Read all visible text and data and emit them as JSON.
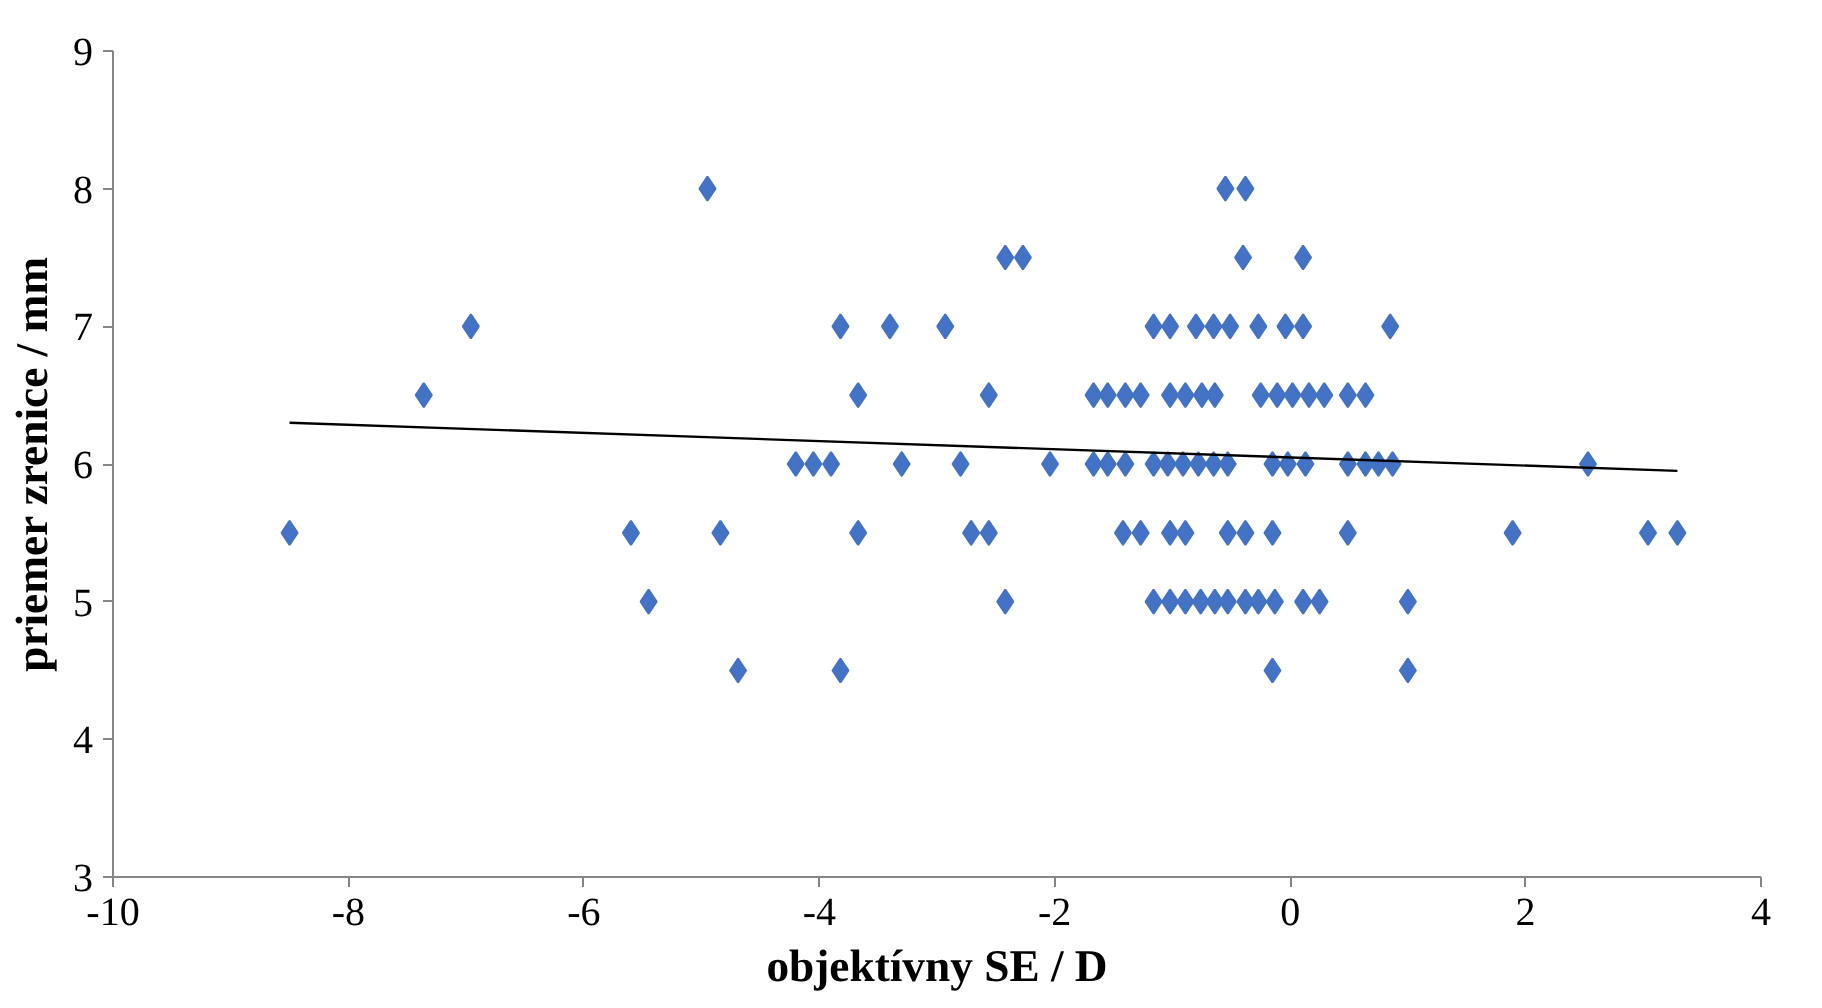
{
  "chart_data": {
    "type": "scatter",
    "xlabel": "objektívny SE / D",
    "ylabel": "priemer zrenice / mm",
    "xlim": [
      -10,
      4
    ],
    "xticks": [
      -10,
      -8,
      -6,
      -4,
      -2,
      0,
      2,
      4
    ],
    "ylim": [
      3,
      9
    ],
    "yticks": [
      3,
      4,
      5,
      6,
      7,
      8,
      9
    ],
    "grid": false,
    "marker": "diamond",
    "series": [
      {
        "color": "#4472c4",
        "x": [
          -4.95,
          -0.55,
          -0.38,
          -2.42,
          -2.27,
          -0.4,
          0.11,
          -6.96,
          -3.82,
          -3.4,
          -2.93,
          -1.16,
          -1.02,
          -0.8,
          -0.65,
          -0.51,
          -0.27,
          -0.04,
          0.11,
          0.85,
          -7.36,
          -3.67,
          -2.56,
          -1.67,
          -1.55,
          -1.4,
          -1.27,
          -1.02,
          -0.89,
          -0.75,
          -0.64,
          -0.25,
          -0.11,
          0.02,
          0.16,
          0.29,
          0.49,
          0.64,
          -4.2,
          -4.05,
          -3.9,
          -3.3,
          -2.8,
          -2.04,
          -1.67,
          -1.55,
          -1.4,
          -1.16,
          -1.04,
          -0.91,
          -0.78,
          -0.65,
          -0.53,
          -0.15,
          -0.02,
          0.13,
          0.49,
          0.64,
          0.75,
          0.87,
          2.53,
          -8.5,
          -5.6,
          -4.84,
          -3.67,
          -2.71,
          -2.56,
          -1.42,
          -1.27,
          -1.02,
          -0.89,
          -0.53,
          -0.38,
          -0.15,
          0.49,
          1.89,
          3.04,
          3.29,
          -5.45,
          -2.42,
          -1.16,
          -1.02,
          -0.89,
          -0.76,
          -0.64,
          -0.53,
          -0.38,
          -0.27,
          -0.13,
          0.11,
          0.25,
          1.0,
          -4.69,
          -3.82,
          -0.15,
          1.0
        ],
        "values": [
          8,
          8,
          8,
          7.5,
          7.5,
          7.5,
          7.5,
          7,
          7,
          7,
          7,
          7,
          7,
          7,
          7,
          7,
          7,
          7,
          7,
          7,
          6.5,
          6.5,
          6.5,
          6.5,
          6.5,
          6.5,
          6.5,
          6.5,
          6.5,
          6.5,
          6.5,
          6.5,
          6.5,
          6.5,
          6.5,
          6.5,
          6.5,
          6.5,
          6,
          6,
          6,
          6,
          6,
          6,
          6,
          6,
          6,
          6,
          6,
          6,
          6,
          6,
          6,
          6,
          6,
          6,
          6,
          6,
          6,
          6,
          6,
          5.5,
          5.5,
          5.5,
          5.5,
          5.5,
          5.5,
          5.5,
          5.5,
          5.5,
          5.5,
          5.5,
          5.5,
          5.5,
          5.5,
          5.5,
          5.5,
          5.5,
          5,
          5,
          5,
          5,
          5,
          5,
          5,
          5,
          5,
          5,
          5,
          5,
          5,
          5,
          4.5,
          4.5,
          4.5,
          4.5
        ]
      },
      {
        "type": "line",
        "color": "#000000",
        "x": [
          -8.5,
          3.29
        ],
        "values": [
          6.3,
          5.95
        ],
        "marker": "none",
        "line_style": "solid"
      }
    ]
  }
}
